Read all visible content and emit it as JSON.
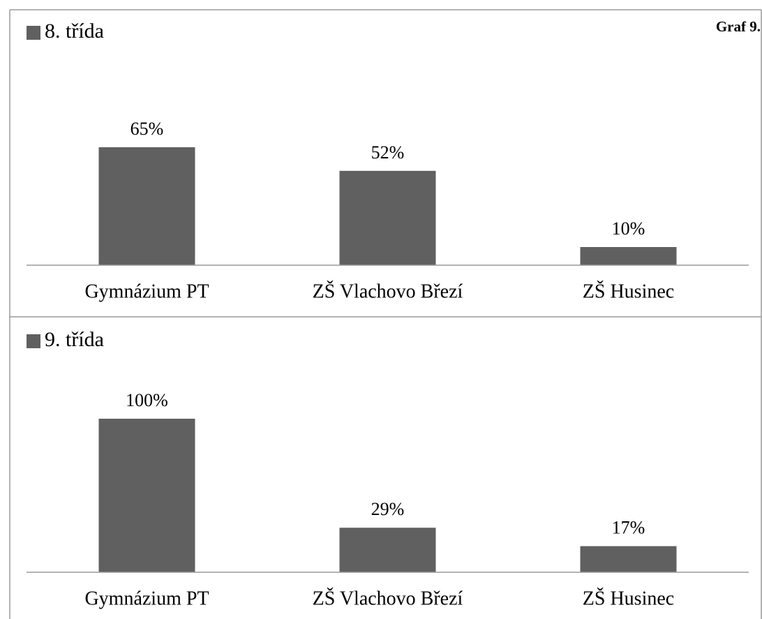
{
  "chart_data": [
    {
      "type": "bar",
      "annotation": "Graf 9.",
      "categories": [
        "Gymnázium PT",
        "ZŠ Vlachovo Březí",
        "ZŠ Husinec"
      ],
      "series": [
        {
          "name": "8. třída",
          "color": "#606060",
          "values": [
            65,
            52,
            10
          ],
          "value_labels": [
            "65%",
            "52%",
            "10%"
          ]
        }
      ],
      "ylim": [
        0,
        70
      ]
    },
    {
      "type": "bar",
      "categories": [
        "Gymnázium PT",
        "ZŠ Vlachovo Březí",
        "ZŠ Husinec"
      ],
      "series": [
        {
          "name": "9. třída",
          "color": "#606060",
          "values": [
            100,
            29,
            17
          ],
          "value_labels": [
            "100%",
            "29%",
            "17%"
          ]
        }
      ],
      "ylim": [
        0,
        120
      ]
    }
  ]
}
